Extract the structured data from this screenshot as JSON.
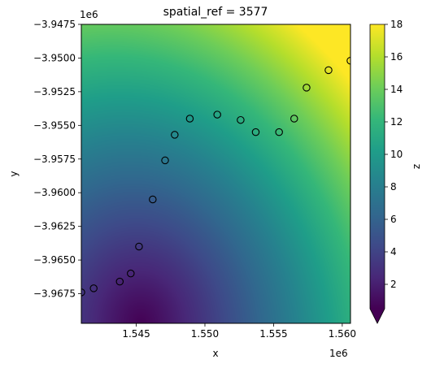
{
  "chart_data": {
    "type": "heatmap",
    "title": "spatial_ref = 3577",
    "xlabel": "x",
    "ylabel": "y",
    "x_offset_label": "1e6",
    "y_offset_label": "1e6",
    "xlim": [
      1.541,
      1.5606
    ],
    "ylim": [
      -3.9697,
      -3.9475
    ],
    "xticks": [
      1.545,
      1.55,
      1.555,
      1.56
    ],
    "xtick_labels": [
      "1.545",
      "1.550",
      "1.555",
      "1.560"
    ],
    "yticks": [
      -3.9475,
      -3.95,
      -3.9525,
      -3.955,
      -3.9575,
      -3.96,
      -3.9625,
      -3.965,
      -3.9675
    ],
    "ytick_labels": [
      "−3.9475",
      "−3.9500",
      "−3.9525",
      "−3.9550",
      "−3.9575",
      "−3.9600",
      "−3.9625",
      "−3.9650",
      "−3.9675"
    ],
    "colorbar": {
      "label": "z",
      "colormap": "viridis",
      "range": [
        0.5,
        18
      ],
      "ticks": [
        2,
        4,
        6,
        8,
        10,
        12,
        14,
        16,
        18
      ],
      "tick_labels": [
        "2",
        "4",
        "6",
        "8",
        "10",
        "12",
        "14",
        "16",
        "18"
      ],
      "extend": "min"
    },
    "points": {
      "marker": "open-circle",
      "edge_color": "#000000",
      "x": [
        1.541,
        1.5419,
        1.5438,
        1.5446,
        1.5452,
        1.5462,
        1.5471,
        1.5478,
        1.5489,
        1.5509,
        1.5526,
        1.5537,
        1.5554,
        1.5565,
        1.5574,
        1.559,
        1.5606
      ],
      "y": [
        -3.9674,
        -3.9671,
        -3.9666,
        -3.966,
        -3.964,
        -3.9605,
        -3.9576,
        -3.9557,
        -3.9545,
        -3.9542,
        -3.9546,
        -3.9555,
        -3.9555,
        -3.9545,
        -3.9522,
        -3.9509,
        -3.9502
      ]
    }
  }
}
